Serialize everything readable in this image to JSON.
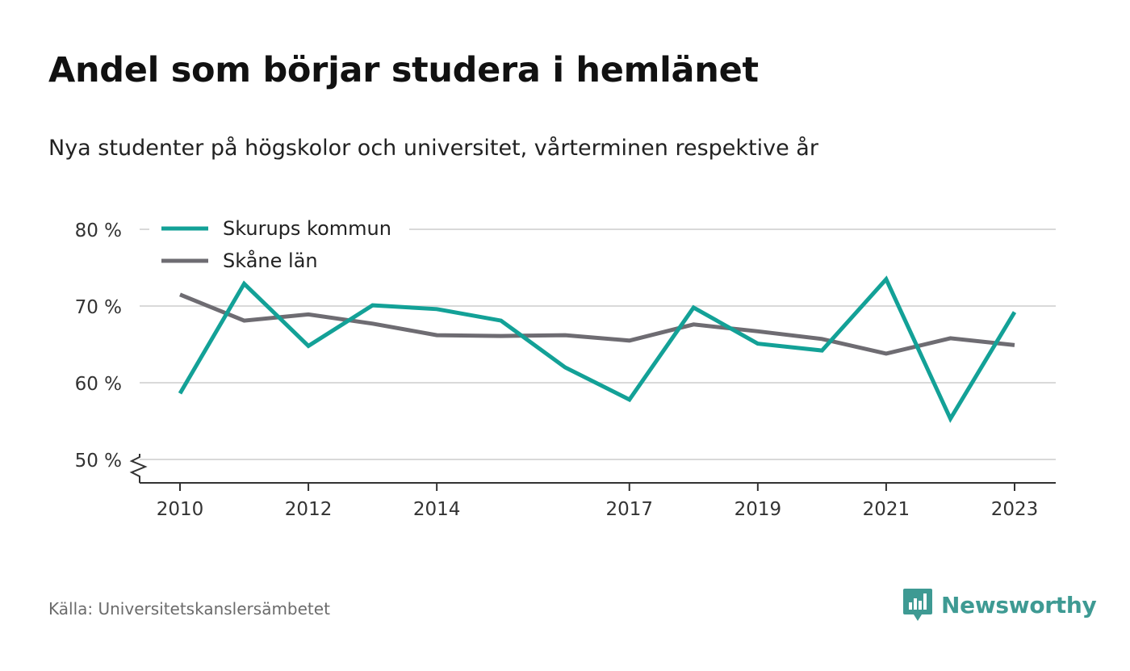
{
  "title": "Andel som börjar studera i hemlänet",
  "subtitle": "Nya studenter på högskolor och universitet, vårterminen respektive år",
  "source": "Källa: Universitetskanslersämbetet",
  "brand": {
    "name": "Newsworthy",
    "icon": "chart-speech-bubble-icon"
  },
  "chart_data": {
    "type": "line",
    "x": [
      2010,
      2011,
      2012,
      2013,
      2014,
      2015,
      2016,
      2017,
      2018,
      2019,
      2020,
      2021,
      2022,
      2023
    ],
    "x_ticks": [
      "2010",
      "2012",
      "2014",
      "2017",
      "2019",
      "2021",
      "2023"
    ],
    "y_ticks": [
      50,
      60,
      70,
      80
    ],
    "y_tick_labels": [
      "50 %",
      "60 %",
      "70 %",
      "80 %"
    ],
    "ylim": [
      47,
      80
    ],
    "y_axis_break": true,
    "grid": true,
    "legend_position": "top-left",
    "series": [
      {
        "name": "Skurups kommun",
        "color": "#13a197",
        "values": [
          58.6,
          72.9,
          64.8,
          70.1,
          69.6,
          68.1,
          62.0,
          57.8,
          69.8,
          65.1,
          64.2,
          73.5,
          55.3,
          69.2
        ]
      },
      {
        "name": "Skåne län",
        "color": "#6e6c72",
        "values": [
          71.5,
          68.1,
          68.9,
          67.7,
          66.2,
          66.1,
          66.2,
          65.5,
          67.6,
          66.7,
          65.7,
          63.8,
          65.8,
          64.9
        ]
      }
    ]
  }
}
